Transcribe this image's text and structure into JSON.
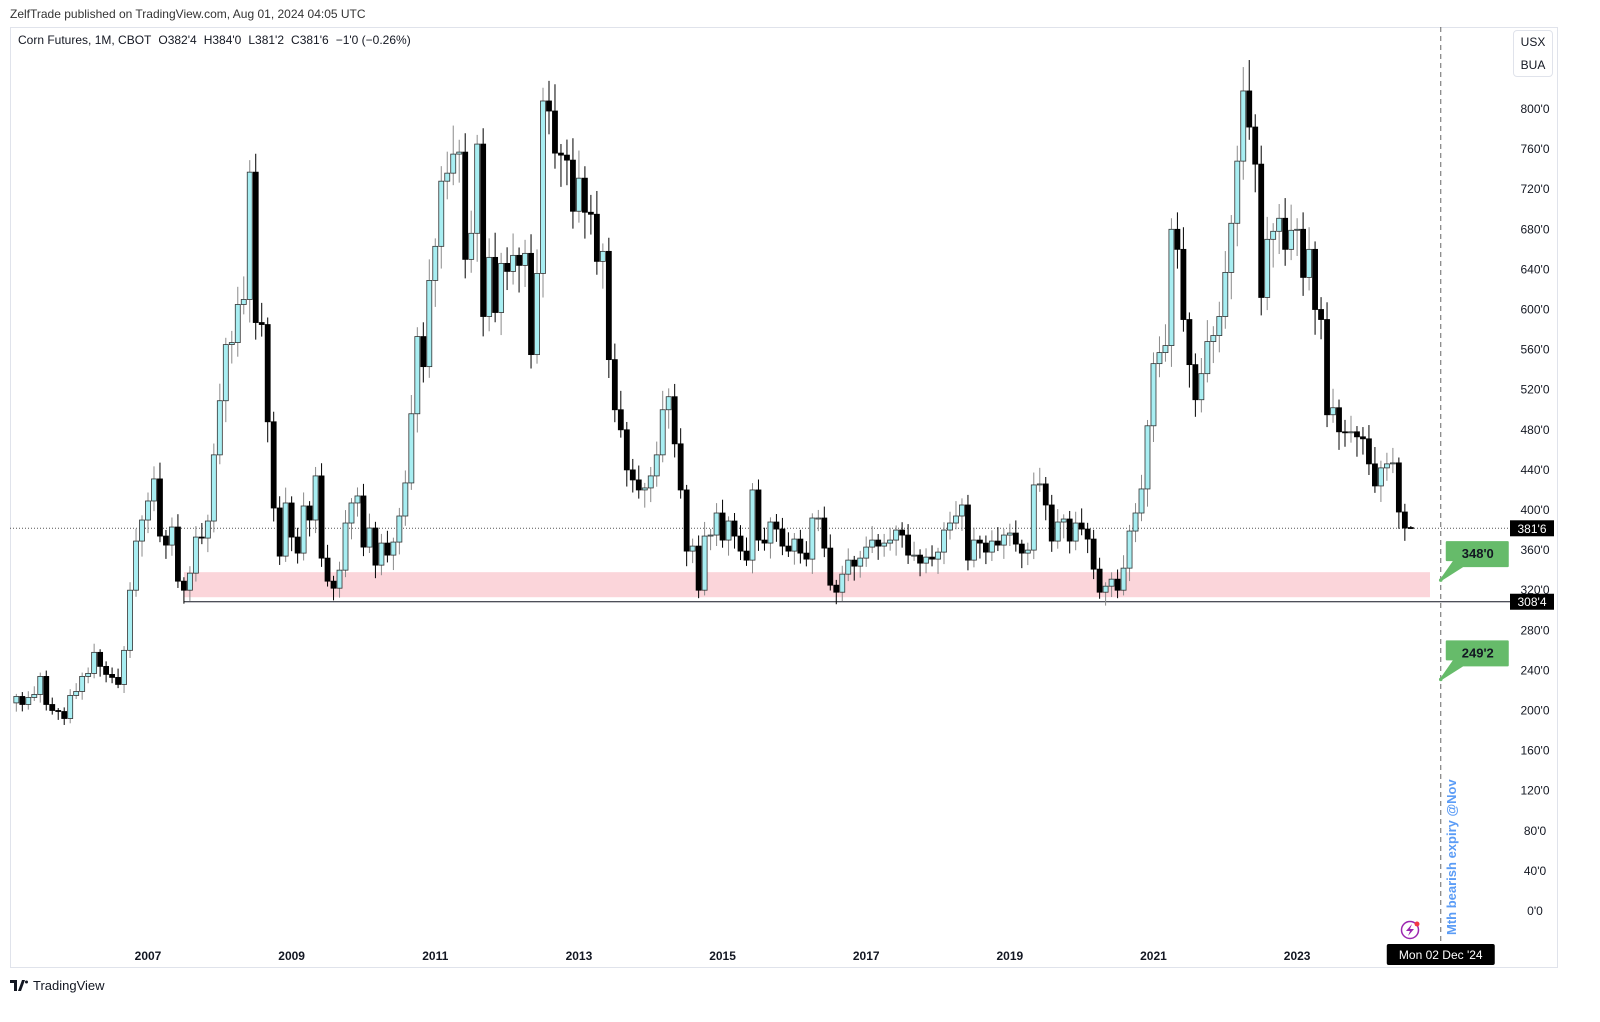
{
  "publish_line": "ZelfTrade published on TradingView.com, Aug 01, 2024 04:05 UTC",
  "legend": {
    "symbol": "Corn Futures, 1M, CBOT",
    "open": "O382'4",
    "high": "H384'0",
    "low": "L381'2",
    "close": "C381'6",
    "change": "−1'0 (−0.26%)"
  },
  "currency": {
    "unit": "USX",
    "measure": "BUA"
  },
  "footer": {
    "logo_text": "TradingView"
  },
  "annotations": {
    "target_1": "348'0",
    "target_2": "249'2",
    "support_price_label": "308'4",
    "last_price_label": "381'6",
    "vertical_note": "Mth bearish expiry @Nov",
    "crosshair_date": "Mon 02 Dec '24"
  },
  "colors": {
    "bull_fill": "#a8eef2",
    "bear_fill": "#000000",
    "zone_fill": "#fbd5da",
    "callout": "#66bb6a",
    "note_text": "#5b9cf6",
    "alert_icon": "#9c27b0"
  },
  "chart_data": {
    "type": "candlestick",
    "title": "Corn Futures, 1M, CBOT",
    "interval": "1M",
    "start_month": "2005-03",
    "wick_pct": 3,
    "close": [
      214,
      206,
      213,
      216,
      234,
      206,
      200,
      199,
      192,
      215,
      219,
      234,
      237,
      258,
      244,
      236,
      233,
      226,
      260,
      320,
      369,
      390,
      409,
      431,
      374,
      365,
      383,
      329,
      320,
      337,
      373,
      372,
      389,
      455,
      509,
      565,
      567,
      605,
      610,
      737,
      587,
      585,
      488,
      402,
      354,
      407,
      373,
      357,
      404,
      390,
      434,
      352,
      329,
      322,
      340,
      387,
      407,
      414,
      363,
      382,
      345,
      367,
      355,
      368,
      394,
      427,
      496,
      573,
      543,
      629,
      663,
      728,
      736,
      755,
      757,
      650,
      676,
      765,
      593,
      652,
      597,
      646,
      638,
      654,
      644,
      656,
      555,
      636,
      808,
      798,
      756,
      754,
      749,
      698,
      731,
      697,
      695,
      648,
      658,
      550,
      500,
      480,
      440,
      430,
      420,
      422,
      434,
      455,
      500,
      513,
      466,
      420,
      359,
      364,
      320,
      374,
      375,
      397,
      370,
      389,
      374,
      359,
      350,
      420,
      370,
      367,
      388,
      381,
      364,
      359,
      371,
      357,
      351,
      392,
      392,
      362,
      325,
      318,
      336,
      350,
      344,
      352,
      363,
      370,
      364,
      367,
      370,
      380,
      375,
      355,
      355,
      347,
      353,
      351,
      358,
      380,
      387,
      394,
      405,
      350,
      370,
      367,
      358,
      369,
      365,
      375,
      377,
      366,
      357,
      360,
      425,
      426,
      405,
      369,
      388,
      391,
      369,
      387,
      381,
      371,
      341,
      318,
      324,
      331,
      320,
      342,
      379,
      397,
      421,
      484,
      546,
      557,
      564,
      680,
      660,
      590,
      545,
      510,
      536,
      568,
      574,
      593,
      637,
      686,
      748,
      818,
      782,
      745,
      612,
      670,
      678,
      691,
      660,
      679,
      680,
      632,
      660,
      600,
      590,
      495,
      502,
      478,
      477,
      478,
      473,
      471,
      446,
      424,
      442,
      446,
      447,
      398,
      382,
      381.75
    ],
    "last_bar": {
      "open": 382.5,
      "high": 384,
      "low": 381.25,
      "close": 381.75
    },
    "ylim": [
      0,
      820
    ],
    "y_ticks": [
      {
        "value": 0,
        "label": "0'0"
      },
      {
        "value": 40,
        "label": "40'0"
      },
      {
        "value": 80,
        "label": "80'0"
      },
      {
        "value": 120,
        "label": "120'0"
      },
      {
        "value": 160,
        "label": "160'0"
      },
      {
        "value": 200,
        "label": "200'0"
      },
      {
        "value": 240,
        "label": "240'0"
      },
      {
        "value": 280,
        "label": "280'0"
      },
      {
        "value": 320,
        "label": "320'0"
      },
      {
        "value": 360,
        "label": "360'0"
      },
      {
        "value": 400,
        "label": "400'0"
      },
      {
        "value": 440,
        "label": "440'0"
      },
      {
        "value": 480,
        "label": "480'0"
      },
      {
        "value": 520,
        "label": "520'0"
      },
      {
        "value": 560,
        "label": "560'0"
      },
      {
        "value": 600,
        "label": "600'0"
      },
      {
        "value": 640,
        "label": "640'0"
      },
      {
        "value": 680,
        "label": "680'0"
      },
      {
        "value": 720,
        "label": "720'0"
      },
      {
        "value": 760,
        "label": "760'0"
      },
      {
        "value": 800,
        "label": "800'0"
      }
    ],
    "x_ticks": [
      {
        "month_index": 22,
        "label": "2007"
      },
      {
        "month_index": 46,
        "label": "2009"
      },
      {
        "month_index": 70,
        "label": "2011"
      },
      {
        "month_index": 94,
        "label": "2013"
      },
      {
        "month_index": 118,
        "label": "2015"
      },
      {
        "month_index": 142,
        "label": "2017"
      },
      {
        "month_index": 166,
        "label": "2019"
      },
      {
        "month_index": 190,
        "label": "2021"
      },
      {
        "month_index": 214,
        "label": "2023"
      }
    ],
    "support_zone": {
      "from_price": 313,
      "to_price": 338,
      "start_month_index": 28,
      "end_month_index": 236
    },
    "support_line": {
      "price": 308.5,
      "start_month_index": 28
    },
    "last_price_line": 381.75,
    "vertical_marker_month_index": 238,
    "callouts": [
      {
        "price": 348,
        "anchor_price": 346
      },
      {
        "price": 249.25,
        "anchor_price": 247
      }
    ]
  }
}
